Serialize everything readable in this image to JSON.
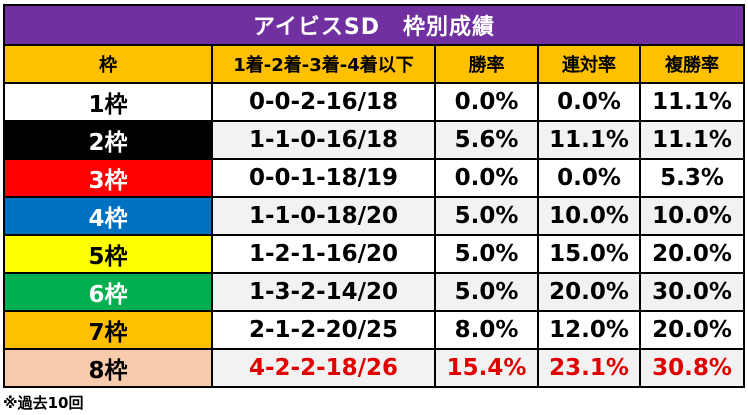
{
  "title": "アイビスSD　枠別成績",
  "headers": [
    "枠",
    "1着-2着-3着-4着以下",
    "勝率",
    "連対率",
    "複勝率"
  ],
  "rows": [
    {
      "frame": "1枠",
      "record": "0-0-2-16/18",
      "win": "0.0%",
      "quinella": "0.0%",
      "place": "11.1%",
      "bg": "#ffffff",
      "fg": "#000000"
    },
    {
      "frame": "2枠",
      "record": "1-1-0-16/18",
      "win": "5.6%",
      "quinella": "11.1%",
      "place": "11.1%",
      "bg": "#000000",
      "fg": "#ffffff"
    },
    {
      "frame": "3枠",
      "record": "0-0-1-18/19",
      "win": "0.0%",
      "quinella": "0.0%",
      "place": "5.3%",
      "bg": "#ff0000",
      "fg": "#ffffff"
    },
    {
      "frame": "4枠",
      "record": "1-1-0-18/20",
      "win": "5.0%",
      "quinella": "10.0%",
      "place": "10.0%",
      "bg": "#0070c0",
      "fg": "#ffffff"
    },
    {
      "frame": "5枠",
      "record": "1-2-1-16/20",
      "win": "5.0%",
      "quinella": "15.0%",
      "place": "20.0%",
      "bg": "#ffff00",
      "fg": "#000000"
    },
    {
      "frame": "6枠",
      "record": "1-3-2-14/20",
      "win": "5.0%",
      "quinella": "20.0%",
      "place": "30.0%",
      "bg": "#00b050",
      "fg": "#ffffff"
    },
    {
      "frame": "7枠",
      "record": "2-1-2-20/25",
      "win": "8.0%",
      "quinella": "12.0%",
      "place": "20.0%",
      "bg": "#ffc000",
      "fg": "#000000"
    },
    {
      "frame": "8枠",
      "record": "4-2-2-18/26",
      "win": "15.4%",
      "quinella": "23.1%",
      "place": "30.8%",
      "bg": "#f8cbad",
      "fg": "#000000",
      "highlight": true
    }
  ],
  "footnote": "※過去10回"
}
